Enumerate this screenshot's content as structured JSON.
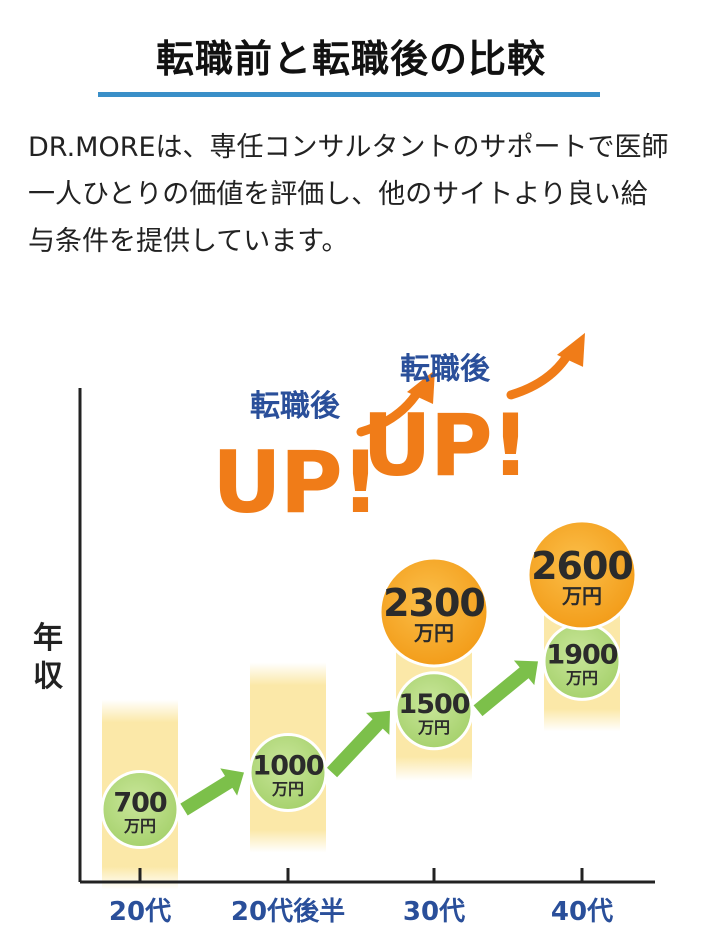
{
  "page": {
    "title": "転職前と転職後の比較",
    "intro_lines": [
      "DR.MOREは、専任コンサルタントのサポートで医師",
      "一人ひとりの価値を評価し、他のサイトより良い給",
      "与条件を提供しています。"
    ]
  },
  "colors": {
    "underline": "#3a8fc8",
    "band": "#fbe8a8",
    "before_circle": "#a9d46f",
    "after_circle": "#f5a21c",
    "arrow_green": "#7cc04a",
    "up_orange": "#f07c18",
    "up_label_blue": "#2a4f9a",
    "axis": "#222222",
    "tick_label_blue": "#2a4f9a"
  },
  "chart_data": {
    "type": "scatter",
    "ylabel": "年収",
    "categories": [
      "20代",
      "20代後半",
      "30代",
      "40代"
    ],
    "unit": "万円",
    "series": [
      {
        "values": [
          700,
          1000,
          1500,
          1900
        ]
      },
      {
        "values": [
          null,
          null,
          2300,
          2600
        ]
      }
    ],
    "annotations": [
      {
        "category": "30代",
        "label": "転職後",
        "text": "UP!"
      },
      {
        "category": "40代",
        "label": "転職後",
        "text": "UP!"
      }
    ],
    "grid": false,
    "legend": "none"
  }
}
